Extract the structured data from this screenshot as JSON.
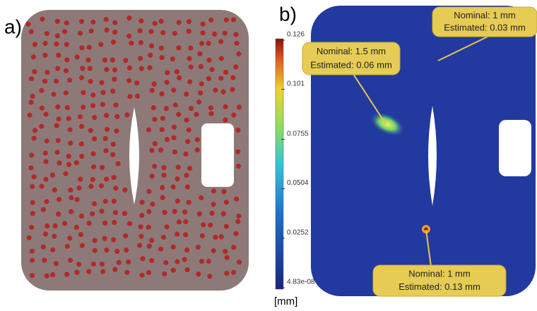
{
  "panels": [
    {
      "label": "a)"
    },
    {
      "label": "b)",
      "colorbar": {
        "lim": [
          4.83e-08,
          0.126
        ],
        "ticks": [
          0.126,
          0.101,
          0.0755,
          0.0504,
          0.0252,
          {
            "value": 4.83e-08,
            "label": "4.83e-08"
          }
        ],
        "unit": "[mm]"
      },
      "annotations": [
        {
          "lines": [
            "Nominal: 1 mm",
            "Estimated: 0.03 mm"
          ]
        },
        {
          "lines": [
            "Nominal: 1.5 mm",
            "Estimated: 0.06 mm"
          ]
        },
        {
          "lines": [
            "Nominal: 1 mm",
            "Estimated: 0.13 mm"
          ]
        }
      ]
    }
  ]
}
